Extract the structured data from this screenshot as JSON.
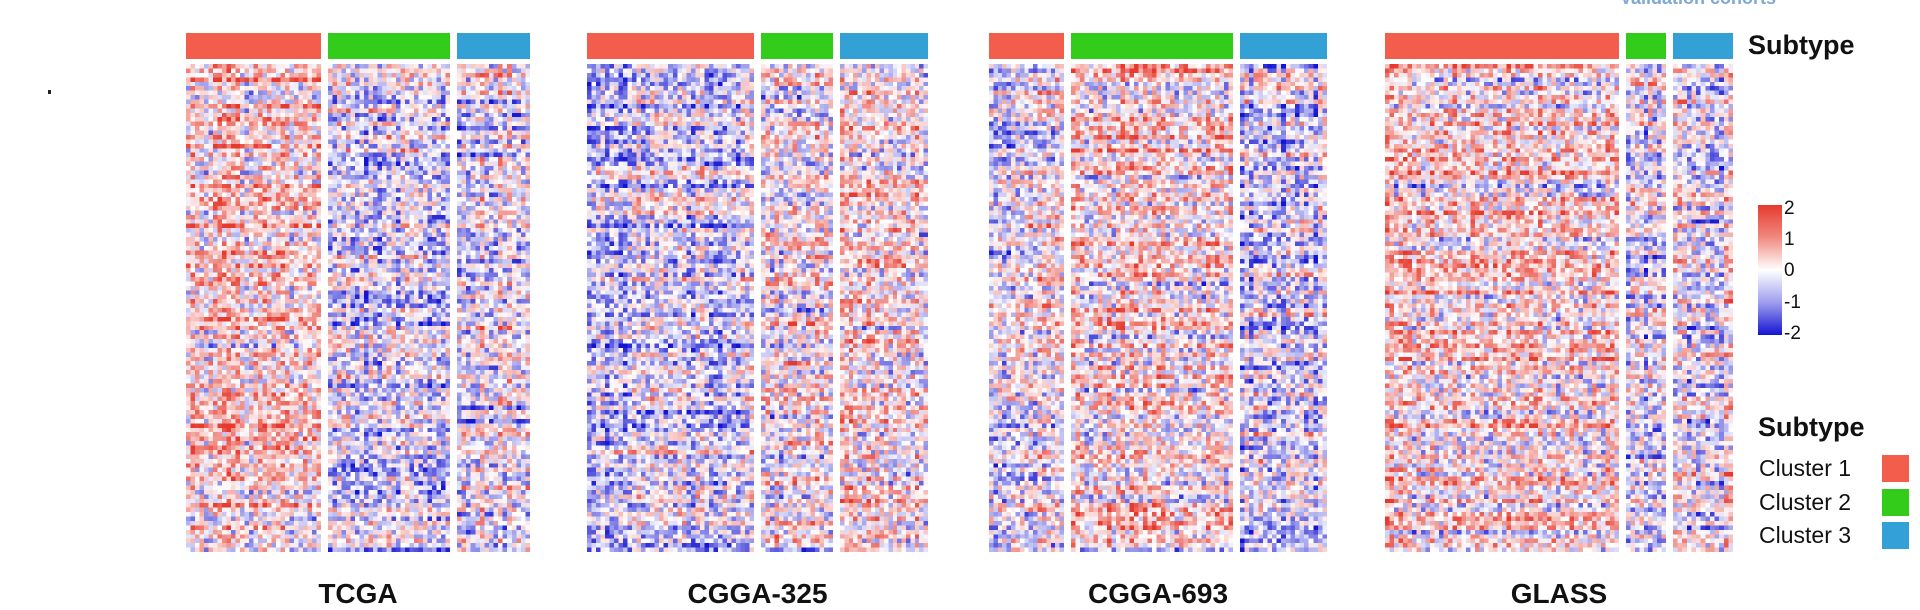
{
  "top_caption": "Validation cohorts",
  "colors": {
    "cluster1": "#f25e4b",
    "cluster2": "#33cc1a",
    "cluster3": "#33a0d6",
    "high": "#e63a2e",
    "mid": "#ffffff",
    "low": "#1414d2"
  },
  "chart_data": {
    "type": "heatmap",
    "color_scale": {
      "title": "Subtype",
      "min": -2,
      "max": 2,
      "ticks": [
        "2",
        "1",
        "0",
        "-1",
        "-2"
      ]
    },
    "legend": {
      "title": "Subtype",
      "entries": [
        {
          "label": "Cluster 1",
          "color": "#f25e4b"
        },
        {
          "label": "Cluster 2",
          "color": "#33cc1a"
        },
        {
          "label": "Cluster 3",
          "color": "#33a0d6"
        }
      ],
      "placement": "right"
    },
    "panels": [
      {
        "cohort": "TCGA",
        "cluster_fractions": [
          0.41,
          0.37,
          0.22
        ]
      },
      {
        "cohort": "CGGA-325",
        "cluster_fractions": [
          0.51,
          0.22,
          0.27
        ]
      },
      {
        "cohort": "CGGA-693",
        "cluster_fractions": [
          0.23,
          0.5,
          0.27
        ]
      },
      {
        "cohort": "GLASS",
        "cluster_fractions": [
          0.7,
          0.12,
          0.18
        ]
      }
    ]
  }
}
